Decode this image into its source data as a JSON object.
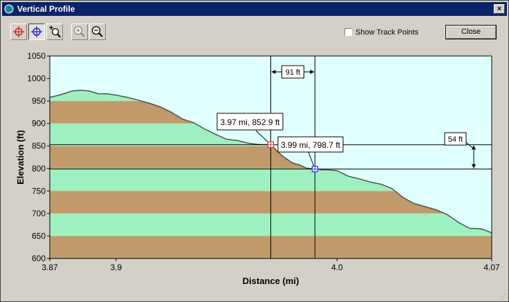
{
  "window": {
    "title": "Vertical Profile",
    "close_glyph": "×"
  },
  "toolbar": {
    "tools": [
      {
        "name": "select-point-red-icon",
        "pressed": false
      },
      {
        "name": "select-point-blue-icon",
        "pressed": true
      },
      {
        "name": "zoom-region-icon",
        "pressed": false
      },
      {
        "name": "zoom-in-icon",
        "pressed": false
      },
      {
        "name": "zoom-out-icon",
        "pressed": false
      }
    ]
  },
  "options": {
    "show_track_points_label": "Show Track Points",
    "show_track_points_checked": false
  },
  "buttons": {
    "close_label": "Close"
  },
  "chart_data": {
    "type": "area",
    "xlabel": "Distance   (mi)",
    "ylabel": "Elevation  (ft)",
    "xlim": [
      3.87,
      4.07
    ],
    "ylim": [
      600,
      1050
    ],
    "x_ticks": [
      {
        "value": 3.87,
        "label": "3.87"
      },
      {
        "value": 3.9,
        "label": "3.9"
      },
      {
        "value": 4.0,
        "label": "4.0"
      },
      {
        "value": 4.07,
        "label": "4.07"
      }
    ],
    "y_ticks": [
      "600",
      "650",
      "700",
      "750",
      "800",
      "850",
      "900",
      "950",
      "1000",
      "1050"
    ],
    "band_colors": {
      "brown": "#c19a6b",
      "green": "#9ff0c0"
    },
    "sky_color": "#e0ffff",
    "series": [
      {
        "x": [
          3.87,
          3.875,
          3.88,
          3.884,
          3.888,
          3.892,
          3.896,
          3.9,
          3.905,
          3.91,
          3.915,
          3.92,
          3.925,
          3.93,
          3.935,
          3.94,
          3.945,
          3.95,
          3.955,
          3.96,
          3.965,
          3.97,
          3.973,
          3.976,
          3.98,
          3.983,
          3.986,
          3.99,
          3.993,
          3.996,
          4.0,
          4.005,
          4.01,
          4.015,
          4.02,
          4.025,
          4.03,
          4.035,
          4.04,
          4.045,
          4.05,
          4.055,
          4.06,
          4.065,
          4.067,
          4.07
        ],
        "y": [
          958,
          964,
          972,
          974,
          972,
          966,
          966,
          963,
          958,
          952,
          945,
          937,
          925,
          910,
          902,
          888,
          876,
          865,
          862,
          856,
          853,
          852.9,
          838,
          825,
          812,
          808,
          801,
          798.7,
          797,
          797,
          795,
          783,
          777,
          770,
          765,
          755,
          735,
          722,
          715,
          708,
          697,
          680,
          667,
          666,
          663,
          657
        ]
      }
    ],
    "markers": [
      {
        "x": 3.97,
        "y": 852.9,
        "label": "3.97 mi, 852.9 ft",
        "color": "#e03030"
      },
      {
        "x": 3.99,
        "y": 798.7,
        "label": "3.99 mi, 798.7 ft",
        "color": "#3030e0"
      }
    ],
    "annotations": {
      "delta_distance": "91 ft",
      "delta_elevation": "54 ft"
    }
  }
}
